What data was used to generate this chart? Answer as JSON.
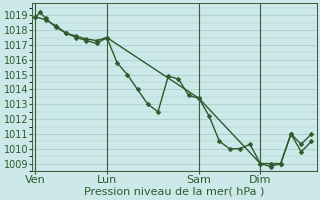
{
  "title": "",
  "xlabel": "Pression niveau de la mer( hPa )",
  "ylabel": "",
  "bg_color": "#cce8e8",
  "grid_color": "#aacccc",
  "line_color": "#2d5a2d",
  "ylim": [
    1008.5,
    1019.8
  ],
  "yticks": [
    1009,
    1010,
    1011,
    1012,
    1013,
    1014,
    1015,
    1016,
    1017,
    1018,
    1019
  ],
  "xtick_labels": [
    "Ven",
    "Lun",
    "Sam",
    "Dim"
  ],
  "xtick_pos": [
    0,
    7,
    16,
    22
  ],
  "vline_pos": [
    0,
    7,
    16,
    22
  ],
  "xlim": [
    -0.3,
    27.5
  ],
  "series1_x": [
    0,
    0.5,
    1,
    2,
    3,
    4,
    5,
    6,
    7,
    8,
    9,
    10,
    11,
    12,
    13,
    14,
    15,
    16,
    17,
    18,
    19,
    20,
    21,
    22,
    23,
    24,
    25,
    26,
    27
  ],
  "series1_y": [
    1018.9,
    1019.2,
    1018.8,
    1018.2,
    1017.8,
    1017.6,
    1017.4,
    1017.3,
    1017.5,
    1015.8,
    1015.0,
    1014.0,
    1013.0,
    1012.5,
    1014.9,
    1014.7,
    1013.6,
    1013.4,
    1012.2,
    1010.5,
    1010.0,
    1010.0,
    1010.3,
    1009.0,
    1009.0,
    1009.0,
    1011.0,
    1009.8,
    1010.5
  ],
  "series2_x": [
    0,
    1,
    2,
    3,
    4,
    5,
    6,
    7,
    16,
    22,
    23,
    24,
    25,
    26,
    27
  ],
  "series2_y": [
    1018.9,
    1018.7,
    1018.3,
    1017.8,
    1017.5,
    1017.3,
    1017.1,
    1017.5,
    1013.4,
    1009.0,
    1008.8,
    1009.0,
    1011.0,
    1010.3,
    1011.0
  ],
  "marker": "D",
  "marker_size": 2.5,
  "font_size": 8,
  "tick_font_size": 7,
  "linewidth": 1.0
}
